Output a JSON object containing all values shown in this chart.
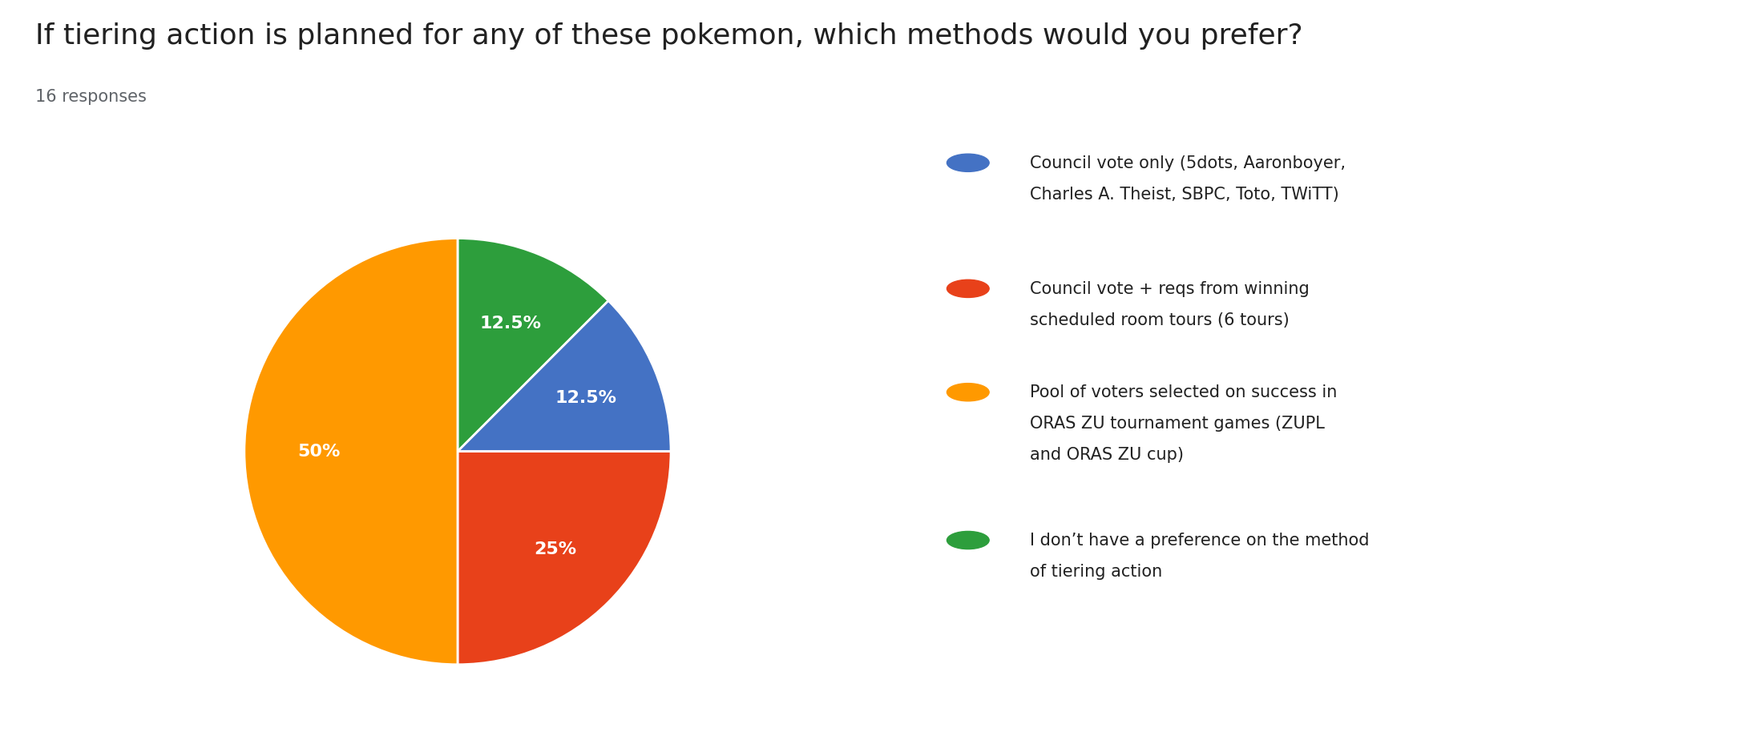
{
  "title": "If tiering action is planned for any of these pokemon, which methods would you prefer?",
  "subtitle": "16 responses",
  "slices": [
    {
      "label": "Council vote only (5dots, Aaronboyer,\nCharles A. Theist, SBPC, Toto, TWiTT)",
      "value": 12.5,
      "color": "#4472C4"
    },
    {
      "label": "Council vote + reqs from winning\nscheduled room tours (6 tours)",
      "value": 25.0,
      "color": "#E8411A"
    },
    {
      "label": "Pool of voters selected on success in\nORAS ZU tournament games (ZUPL\nand ORAS ZU cup)",
      "value": 50.0,
      "color": "#FF9900"
    },
    {
      "label": "I don’t have a preference on the method\nof tiering action",
      "value": 12.5,
      "color": "#2D9E3C"
    }
  ],
  "pct_labels": [
    "12.5%",
    "25%",
    "50%",
    "12.5%"
  ],
  "slice_order": [
    3,
    0,
    1,
    2
  ],
  "background_color": "#ffffff",
  "title_fontsize": 26,
  "subtitle_fontsize": 15,
  "pct_fontsize": 16,
  "legend_fontsize": 15,
  "startangle": 90
}
